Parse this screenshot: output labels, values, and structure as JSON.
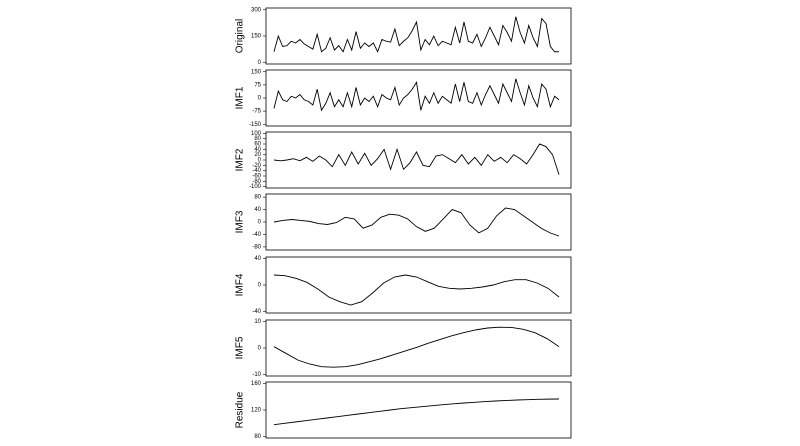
{
  "chart_data": [
    {
      "type": "line",
      "y_label": "Original",
      "color": "#000000",
      "ylim": [
        -10,
        310
      ],
      "yticks": [
        0,
        150,
        300
      ],
      "values": [
        60,
        150,
        90,
        95,
        120,
        110,
        130,
        105,
        90,
        75,
        160,
        60,
        80,
        140,
        70,
        95,
        60,
        130,
        70,
        175,
        80,
        110,
        90,
        110,
        60,
        130,
        120,
        115,
        190,
        95,
        120,
        140,
        180,
        230,
        70,
        130,
        100,
        150,
        95,
        120,
        110,
        100,
        200,
        110,
        230,
        120,
        110,
        160,
        90,
        140,
        200,
        150,
        100,
        210,
        170,
        120,
        260,
        170,
        110,
        210,
        140,
        90,
        250,
        220,
        90,
        60,
        60
      ]
    },
    {
      "type": "line",
      "y_label": "IMF1",
      "color": "#000000",
      "ylim": [
        -160,
        160
      ],
      "yticks": [
        -150,
        -75,
        0,
        75,
        150
      ],
      "values": [
        -60,
        40,
        -10,
        -20,
        10,
        0,
        20,
        -10,
        -20,
        -40,
        50,
        -70,
        -30,
        30,
        -50,
        -10,
        -50,
        30,
        -50,
        60,
        -40,
        0,
        -20,
        10,
        -50,
        20,
        0,
        -10,
        60,
        -40,
        0,
        20,
        50,
        90,
        -70,
        10,
        -30,
        30,
        -30,
        10,
        -10,
        -30,
        80,
        -20,
        90,
        -20,
        -30,
        30,
        -40,
        20,
        70,
        20,
        -30,
        80,
        30,
        -20,
        110,
        30,
        -40,
        70,
        0,
        -50,
        80,
        50,
        -50,
        10,
        -10
      ]
    },
    {
      "type": "line",
      "y_label": "IMF2",
      "color": "#000000",
      "ylim": [
        -105,
        105
      ],
      "yticks": [
        -100,
        -80,
        -60,
        -40,
        -20,
        0,
        20,
        40,
        60,
        80,
        100
      ],
      "values": [
        0,
        -3,
        0,
        5,
        -3,
        10,
        -5,
        15,
        0,
        -25,
        20,
        -20,
        30,
        -15,
        25,
        -20,
        5,
        40,
        -35,
        40,
        -35,
        -10,
        30,
        -20,
        -25,
        15,
        20,
        5,
        -10,
        20,
        -15,
        10,
        -20,
        20,
        -5,
        10,
        -10,
        20,
        5,
        -15,
        20,
        60,
        50,
        20,
        -55
      ]
    },
    {
      "type": "line",
      "y_label": "IMF3",
      "color": "#000000",
      "ylim": [
        -90,
        90
      ],
      "yticks": [
        -80,
        -40,
        0,
        40,
        80
      ],
      "values": [
        0,
        5,
        8,
        5,
        2,
        -5,
        -8,
        -2,
        15,
        10,
        -20,
        -10,
        15,
        25,
        22,
        10,
        -15,
        -30,
        -20,
        10,
        40,
        30,
        -10,
        -35,
        -20,
        20,
        45,
        40,
        20,
        0,
        -20,
        -35,
        -45
      ]
    },
    {
      "type": "line",
      "y_label": "IMF4",
      "color": "#000000",
      "ylim": [
        -42,
        42
      ],
      "yticks": [
        -40,
        0,
        40
      ],
      "values": [
        15,
        14,
        10,
        4,
        -6,
        -18,
        -25,
        -30,
        -25,
        -12,
        3,
        12,
        15,
        12,
        5,
        -2,
        -5,
        -6,
        -5,
        -3,
        0,
        5,
        8,
        8,
        3,
        -5,
        -18
      ]
    },
    {
      "type": "line",
      "y_label": "IMF5",
      "color": "#000000",
      "ylim": [
        -10.5,
        10.5
      ],
      "yticks": [
        -10,
        0,
        10
      ],
      "values": [
        0.5,
        -2,
        -4.5,
        -6,
        -7,
        -7.2,
        -7,
        -6.3,
        -5.2,
        -4,
        -2.6,
        -1.2,
        0.2,
        1.8,
        3.2,
        4.6,
        5.8,
        6.8,
        7.5,
        7.8,
        7.7,
        7,
        5.7,
        3.5,
        0.5
      ]
    },
    {
      "type": "line",
      "y_label": "Residue",
      "color": "#000000",
      "ylim": [
        78,
        162
      ],
      "yticks": [
        80,
        120,
        160
      ],
      "values": [
        98,
        100,
        102,
        104,
        106,
        108,
        110,
        112,
        114,
        116,
        118,
        120,
        122,
        123.5,
        125,
        126.5,
        128,
        129.3,
        130.5,
        131.6,
        132.6,
        133.5,
        134.3,
        135,
        135.5,
        136,
        136.3,
        136.5
      ]
    }
  ]
}
